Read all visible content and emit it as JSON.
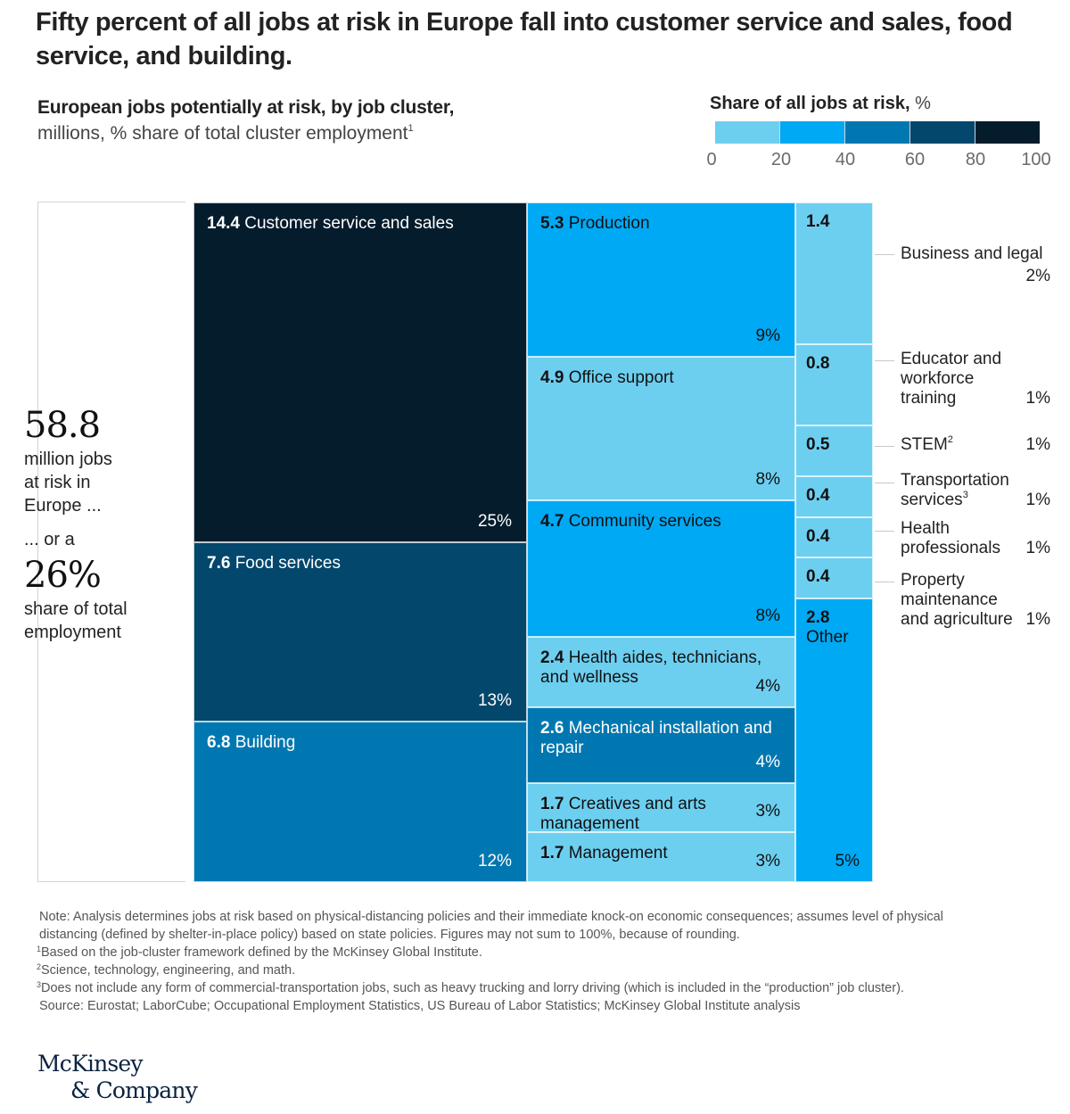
{
  "title": "Fifty percent of all jobs at risk in Europe fall into customer service and sales, food service, and building.",
  "subtitle": {
    "bold": "European jobs potentially at risk, by job cluster,",
    "light": "millions, % share of total cluster employment",
    "footnote_ref": "1"
  },
  "legend": {
    "title_bold": "Share of all jobs at risk,",
    "title_unit": " %",
    "ticks": [
      "0",
      "20",
      "40",
      "60",
      "80",
      "100"
    ],
    "bins": [
      {
        "range": "0-20",
        "color": "#6dcff0"
      },
      {
        "range": "20-40",
        "color": "#00a9f4"
      },
      {
        "range": "40-60",
        "color": "#0077b0"
      },
      {
        "range": "60-80",
        "color": "#04476c"
      },
      {
        "range": "80-100",
        "color": "#051c2c"
      }
    ]
  },
  "summary": {
    "total": "58.8",
    "line1": "million jobs",
    "line2": "at risk in",
    "line3": "Europe ...",
    "line4": "... or a",
    "share": "26%",
    "line5": "share of total",
    "line6": "employment"
  },
  "chart_data": {
    "type": "treemap",
    "title": "European jobs potentially at risk, by job cluster",
    "units": "millions of jobs; % share of total cluster employment",
    "color_scale": "Share of all jobs at risk, % (0-20, 20-40, 40-60, 60-80, 80-100)",
    "total_millions": 58.8,
    "total_share_pct": 26,
    "columns": [
      {
        "cells": [
          {
            "value": 14.4,
            "name": "Customer service and sales",
            "share": "25%",
            "bin": 4
          },
          {
            "value": 7.6,
            "name": "Food services",
            "share": "13%",
            "bin": 3
          },
          {
            "value": 6.8,
            "name": "Building",
            "share": "12%",
            "bin": 2
          }
        ]
      },
      {
        "cells": [
          {
            "value": 5.3,
            "name": "Production",
            "share": "9%",
            "bin": 1
          },
          {
            "value": 4.9,
            "name": "Office support",
            "share": "8%",
            "bin": 0
          },
          {
            "value": 4.7,
            "name": "Community services",
            "share": "8%",
            "bin": 1
          },
          {
            "value": 2.4,
            "name": "Health aides, technicians, and wellness",
            "share": "4%",
            "bin": 0
          },
          {
            "value": 2.6,
            "name": "Mechanical installation and repair",
            "share": "4%",
            "bin": 2
          },
          {
            "value": 1.7,
            "name": "Creatives and arts management",
            "share": "3%",
            "bin": 0
          },
          {
            "value": 1.7,
            "name": "Management",
            "share": "3%",
            "bin": 0
          }
        ]
      },
      {
        "cells": [
          {
            "value": 1.4,
            "name": "Business and legal",
            "share": "2%",
            "bin": 0,
            "external_label": true
          },
          {
            "value": 0.8,
            "name": "Educator and workforce training",
            "share": "1%",
            "bin": 0,
            "external_label": true
          },
          {
            "value": 0.5,
            "name": "STEM",
            "footnote": "2",
            "share": "1%",
            "bin": 0,
            "external_label": true
          },
          {
            "value": 0.4,
            "name": "Transportation services",
            "footnote": "3",
            "share": "1%",
            "bin": 0,
            "external_label": true
          },
          {
            "value": 0.4,
            "name": "Health professionals",
            "share": "1%",
            "bin": 0,
            "external_label": true
          },
          {
            "value": 0.4,
            "name": "Property maintenance and agriculture",
            "share": "1%",
            "bin": 0,
            "external_label": true
          },
          {
            "value": 2.8,
            "name": "Other",
            "share": "5%",
            "bin": 1
          }
        ]
      }
    ]
  },
  "side_labels": [
    {
      "lines": [
        "Business and legal"
      ],
      "pct": "2%",
      "pct_on_new_line": true
    },
    {
      "lines": [
        "Educator and",
        "workforce",
        "training"
      ],
      "pct": "1%"
    },
    {
      "lines": [
        "STEM"
      ],
      "sup": "2",
      "pct": "1%"
    },
    {
      "lines": [
        "Transportation",
        "services"
      ],
      "sup": "3",
      "pct": "1%"
    },
    {
      "lines": [
        "Health",
        "professionals"
      ],
      "pct": "1%"
    },
    {
      "lines": [
        "Property",
        "maintenance",
        "and agriculture"
      ],
      "pct": "1%"
    }
  ],
  "notes": {
    "note_line1": "Note: Analysis determines jobs at risk based on physical-distancing policies and their immediate knock-on economic consequences; assumes level of physical",
    "note_line2": "distancing (defined by shelter-in-place policy) based on state policies. Figures may not sum to 100%, because of rounding.",
    "fn1_mark": "1",
    "fn1": "Based on the job-cluster framework defined by the McKinsey Global Institute.",
    "fn2_mark": "2",
    "fn2": "Science, technology, engineering, and math.",
    "fn3_mark": "3",
    "fn3": "Does not include any form of commercial-transportation jobs, such as heavy trucking and lorry driving (which is included in the “production” job cluster).",
    "source": "Source: Eurostat; LaborCube; Occupational Employment Statistics, US Bureau of Labor Statistics; McKinsey Global Institute analysis"
  },
  "logo": {
    "line1": "McKinsey",
    "line2": "& Company"
  }
}
